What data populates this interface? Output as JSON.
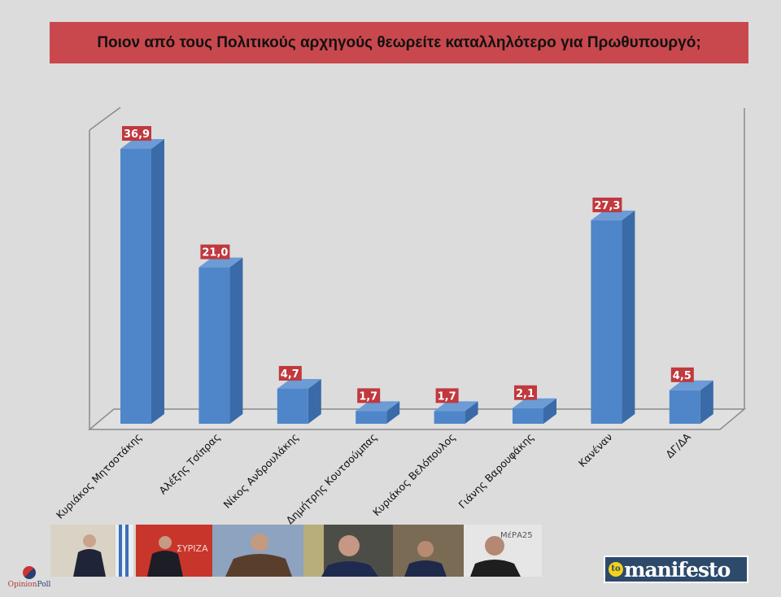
{
  "chart_data": {
    "type": "bar",
    "title": "Ποιον από τους Πολιτικούς αρχηγούς θεωρείτε καταλληλότερο για Πρωθυπουργό;",
    "categories": [
      "Κυριάκος Μητσοτάκης",
      "Αλέξης Τσίπρας",
      "Νίκος Ανδρουλάκης",
      "Δημήτρης Κουτσούμπας",
      "Κυριάκος Βελόπουλος",
      "Γιάνης Βαρουφάκης",
      "Κανέναν",
      "ΔΓ/ΔΑ"
    ],
    "values": [
      36.9,
      21.0,
      4.7,
      1.7,
      1.7,
      2.1,
      27.3,
      4.5
    ],
    "data_labels": [
      "36,9",
      "21,0",
      "4,7",
      "1,7",
      "1,7",
      "2,1",
      "27,3",
      "4,5"
    ],
    "xlabel": "",
    "ylabel": "",
    "ylim": [
      0,
      40
    ],
    "grid": false,
    "colors": {
      "bar": "#4f86c9",
      "bar_side": "#3a6aa8",
      "bar_top": "#6c9bd6",
      "label_bg": "#c0393e"
    }
  },
  "photos": [
    {
      "desc_icon": "photo-mitsotakis",
      "bg": "#d9d3c6"
    },
    {
      "desc_icon": "photo-tsipras",
      "bg": "#c8352b",
      "text": "ΣΥΡΙΖΑ"
    },
    {
      "desc_icon": "photo-androulakis",
      "bg": "#8ea3c0"
    },
    {
      "desc_icon": "photo-koutsoumpas",
      "bg": "#4d4d48"
    },
    {
      "desc_icon": "photo-velopoulos",
      "bg": "#7a6b55"
    },
    {
      "desc_icon": "photo-varoufakis",
      "bg": "#e6e6e6",
      "text": "ΜέΡΑ25"
    }
  ],
  "logos": {
    "opinion": "Opinion",
    "poll": "Poll",
    "manifesto_to": "to",
    "manifesto": "manifesto"
  }
}
